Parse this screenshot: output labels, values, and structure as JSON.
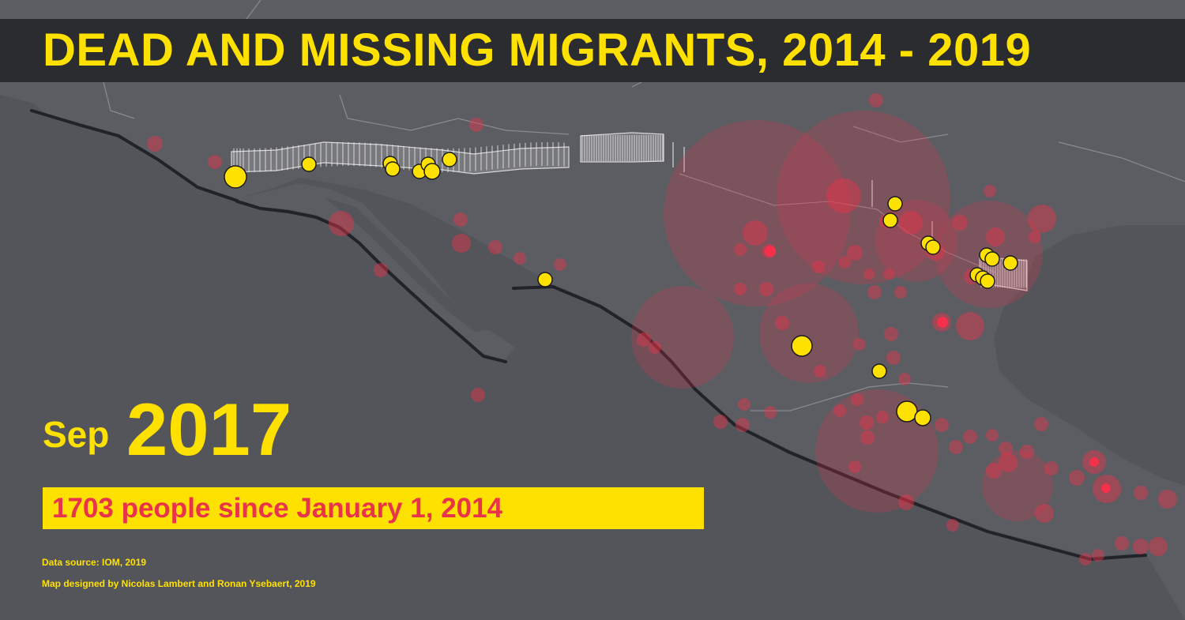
{
  "title": "DEAD AND MISSING MIGRANTS, 2014 - 2019",
  "date": {
    "month": "Sep",
    "year": "2017"
  },
  "summary": "1703 people since January 1, 2014",
  "credits": {
    "source": "Data source: IOM, 2019",
    "design": "Map designed by Nicolas Lambert and Ronan Ysebaert, 2019"
  },
  "colors": {
    "background": "#54555b",
    "land": "#5c5d63",
    "title_bar": "#2b2c30",
    "accent_yellow": "#ffe100",
    "incident_red": "#e8334a",
    "wall": "#e6e6e6"
  },
  "legend_semantics": {
    "red_circles": "past incidents (size = number of dead and missing)",
    "yellow_circles": "incidents in current month",
    "white_bars": "border wall segments"
  }
}
